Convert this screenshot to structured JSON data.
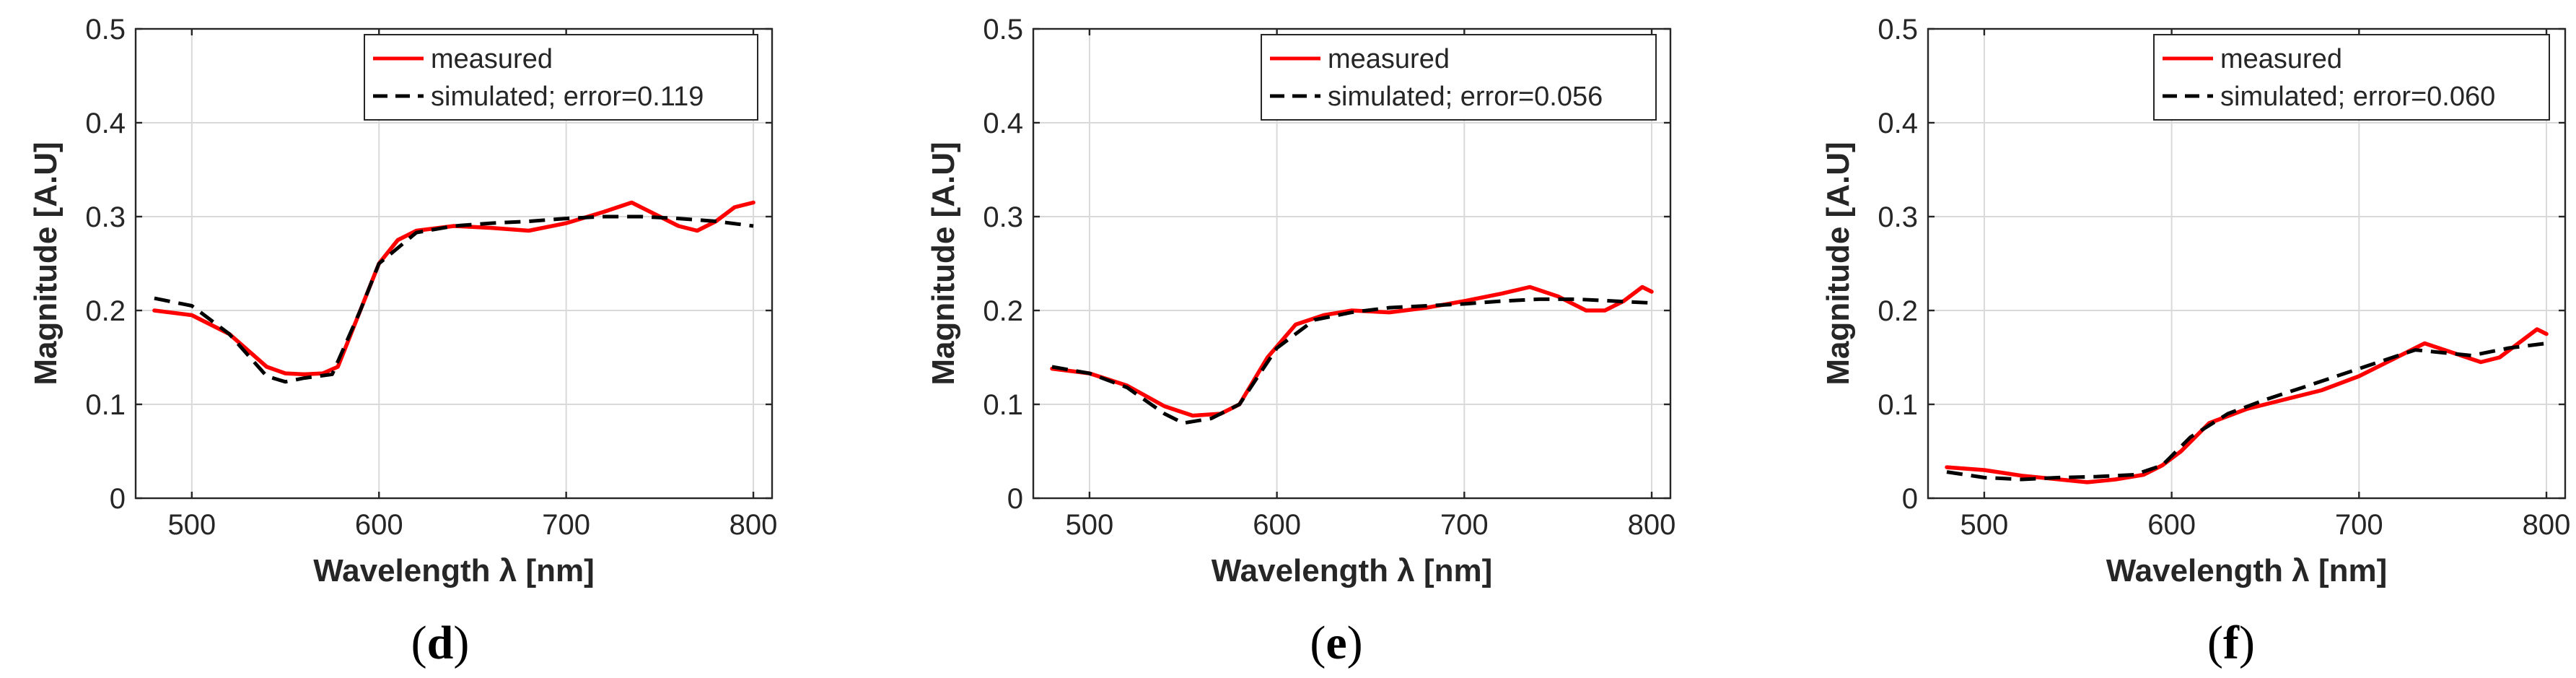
{
  "figure": {
    "panels": [
      {
        "label_open": "(",
        "label_letter": "d",
        "label_close": ")"
      },
      {
        "label_open": "(",
        "label_letter": "e",
        "label_close": ")"
      },
      {
        "label_open": "(",
        "label_letter": "f",
        "label_close": ")"
      }
    ]
  },
  "colors": {
    "measured": "#ff0000",
    "simulated": "#000000",
    "grid": "#d9d9d9",
    "axis": "#262626"
  },
  "chart_data": [
    {
      "type": "line",
      "panel": "d",
      "title": "",
      "xlabel": "Wavelength λ [nm]",
      "ylabel": "Magnitude [A.U]",
      "xlim": [
        470,
        810
      ],
      "ylim": [
        0,
        0.5
      ],
      "xticks": [
        500,
        600,
        700,
        800
      ],
      "xtick_labels": [
        "500",
        "600",
        "700",
        "800"
      ],
      "yticks": [
        0,
        0.1,
        0.2,
        0.3,
        0.4,
        0.5
      ],
      "ytick_labels": [
        "0",
        "0.1",
        "0.2",
        "0.3",
        "0.4",
        "0.5"
      ],
      "grid": true,
      "legend_position": "top-right",
      "series": [
        {
          "name": "measured",
          "style": "solid",
          "color": "#ff0000",
          "x": [
            480,
            500,
            520,
            540,
            550,
            560,
            570,
            578,
            590,
            600,
            610,
            620,
            640,
            660,
            680,
            700,
            720,
            735,
            750,
            760,
            770,
            780,
            790,
            800
          ],
          "y": [
            0.2,
            0.195,
            0.175,
            0.14,
            0.133,
            0.132,
            0.133,
            0.14,
            0.2,
            0.25,
            0.275,
            0.285,
            0.29,
            0.288,
            0.285,
            0.293,
            0.305,
            0.315,
            0.3,
            0.29,
            0.285,
            0.295,
            0.31,
            0.315
          ]
        },
        {
          "name": "simulated; error=0.119",
          "style": "dashed",
          "color": "#000000",
          "x": [
            480,
            500,
            520,
            540,
            550,
            560,
            575,
            590,
            600,
            620,
            640,
            660,
            680,
            700,
            720,
            740,
            760,
            780,
            800
          ],
          "y": [
            0.213,
            0.205,
            0.175,
            0.13,
            0.124,
            0.128,
            0.132,
            0.2,
            0.25,
            0.283,
            0.29,
            0.293,
            0.295,
            0.298,
            0.3,
            0.3,
            0.298,
            0.295,
            0.29
          ]
        }
      ]
    },
    {
      "type": "line",
      "panel": "e",
      "title": "",
      "xlabel": "Wavelength λ [nm]",
      "ylabel": "Magnitude [A.U]",
      "xlim": [
        470,
        810
      ],
      "ylim": [
        0,
        0.5
      ],
      "xticks": [
        500,
        600,
        700,
        800
      ],
      "xtick_labels": [
        "500",
        "600",
        "700",
        "800"
      ],
      "yticks": [
        0,
        0.1,
        0.2,
        0.3,
        0.4,
        0.5
      ],
      "ytick_labels": [
        "0",
        "0.1",
        "0.2",
        "0.3",
        "0.4",
        "0.5"
      ],
      "grid": true,
      "legend_position": "top-right",
      "series": [
        {
          "name": "measured",
          "style": "solid",
          "color": "#ff0000",
          "x": [
            480,
            500,
            520,
            540,
            555,
            570,
            580,
            595,
            610,
            625,
            640,
            660,
            680,
            700,
            720,
            735,
            750,
            765,
            775,
            785,
            795,
            800
          ],
          "y": [
            0.138,
            0.133,
            0.12,
            0.098,
            0.088,
            0.09,
            0.1,
            0.15,
            0.185,
            0.195,
            0.2,
            0.198,
            0.203,
            0.21,
            0.218,
            0.225,
            0.215,
            0.2,
            0.2,
            0.21,
            0.225,
            0.22
          ]
        },
        {
          "name": "simulated; error=0.056",
          "style": "dashed",
          "color": "#000000",
          "x": [
            480,
            500,
            520,
            540,
            550,
            565,
            580,
            600,
            620,
            640,
            660,
            680,
            700,
            720,
            740,
            760,
            780,
            800
          ],
          "y": [
            0.14,
            0.133,
            0.118,
            0.09,
            0.08,
            0.085,
            0.1,
            0.16,
            0.19,
            0.198,
            0.203,
            0.205,
            0.207,
            0.21,
            0.212,
            0.212,
            0.21,
            0.208
          ]
        }
      ]
    },
    {
      "type": "line",
      "panel": "f",
      "title": "",
      "xlabel": "Wavelength λ [nm]",
      "ylabel": "Magnitude [A.U]",
      "xlim": [
        470,
        810
      ],
      "ylim": [
        0,
        0.5
      ],
      "xticks": [
        500,
        600,
        700,
        800
      ],
      "xtick_labels": [
        "500",
        "600",
        "700",
        "800"
      ],
      "yticks": [
        0,
        0.1,
        0.2,
        0.3,
        0.4,
        0.5
      ],
      "ytick_labels": [
        "0",
        "0.1",
        "0.2",
        "0.3",
        "0.4",
        "0.5"
      ],
      "grid": true,
      "legend_position": "top-right",
      "series": [
        {
          "name": "measured",
          "style": "solid",
          "color": "#ff0000",
          "x": [
            480,
            500,
            520,
            540,
            555,
            570,
            585,
            595,
            605,
            620,
            640,
            660,
            680,
            700,
            720,
            735,
            750,
            765,
            775,
            785,
            795,
            800
          ],
          "y": [
            0.033,
            0.03,
            0.024,
            0.02,
            0.017,
            0.02,
            0.025,
            0.035,
            0.05,
            0.08,
            0.095,
            0.105,
            0.115,
            0.13,
            0.15,
            0.165,
            0.155,
            0.145,
            0.15,
            0.165,
            0.18,
            0.175
          ]
        },
        {
          "name": "simulated; error=0.060",
          "style": "dashed",
          "color": "#000000",
          "x": [
            480,
            500,
            520,
            540,
            560,
            580,
            595,
            610,
            630,
            650,
            670,
            700,
            730,
            760,
            780,
            800
          ],
          "y": [
            0.028,
            0.022,
            0.02,
            0.022,
            0.023,
            0.025,
            0.035,
            0.065,
            0.09,
            0.105,
            0.118,
            0.138,
            0.158,
            0.152,
            0.16,
            0.165
          ]
        }
      ]
    }
  ]
}
